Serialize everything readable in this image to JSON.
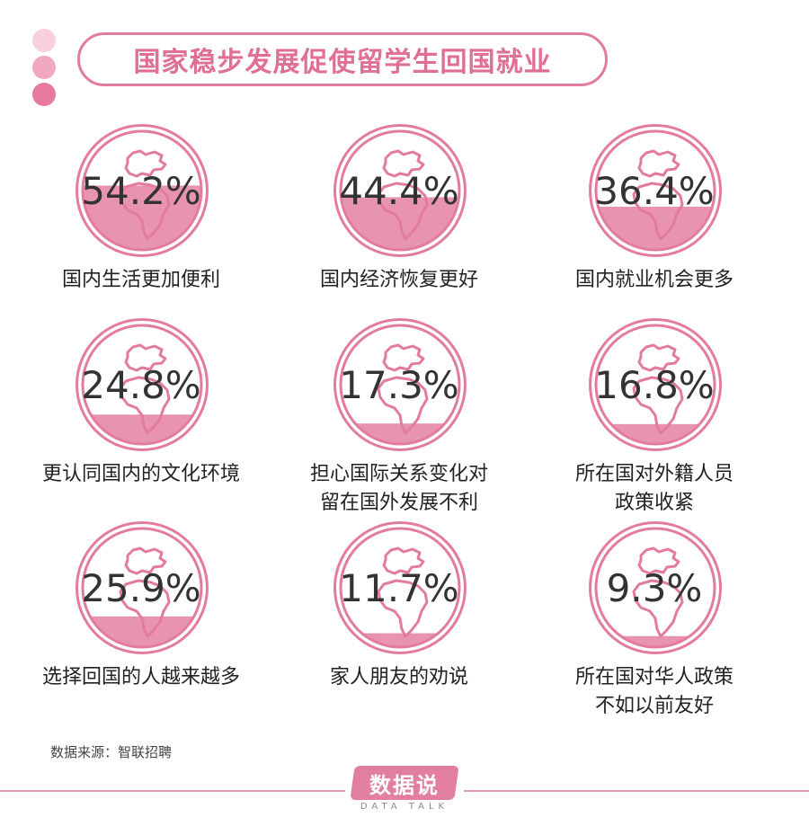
{
  "title": "国家稳步发展促使留学生回国就业",
  "colors": {
    "accent": "#e37c9c",
    "fill": "#e894b0",
    "dots": [
      "#f8d0dc",
      "#f0a9c0",
      "#e77a9c"
    ]
  },
  "chart_data": {
    "type": "bar",
    "title": "国家稳步发展促使留学生回国就业",
    "categories": [
      "国内生活更加便利",
      "国内经济恢复更好",
      "国内就业机会更多",
      "更认同国内的文化环境",
      "担心国际关系变化对留在国外发展不利",
      "所在国对外籍人员政策收紧",
      "选择回国的人越来越多",
      "家人朋友的劝说",
      "所在国对华人政策不如以前友好"
    ],
    "values": [
      54.2,
      44.4,
      36.4,
      24.8,
      17.3,
      16.8,
      25.9,
      11.7,
      9.3
    ],
    "unit": "%"
  },
  "items": [
    {
      "value_text": "54.2%",
      "label_lines": [
        "国内生活更加便利"
      ]
    },
    {
      "value_text": "44.4%",
      "label_lines": [
        "国内经济恢复更好"
      ]
    },
    {
      "value_text": "36.4%",
      "label_lines": [
        "国内就业机会更多"
      ]
    },
    {
      "value_text": "24.8%",
      "label_lines": [
        "更认同国内的文化环境"
      ]
    },
    {
      "value_text": "17.3%",
      "label_lines": [
        "担心国际关系变化对",
        "留在国外发展不利"
      ]
    },
    {
      "value_text": "16.8%",
      "label_lines": [
        "所在国对外籍人员",
        "政策收紧"
      ]
    },
    {
      "value_text": "25.9%",
      "label_lines": [
        "选择回国的人越来越多"
      ]
    },
    {
      "value_text": "11.7%",
      "label_lines": [
        "家人朋友的劝说"
      ]
    },
    {
      "value_text": "9.3%",
      "label_lines": [
        "所在国对华人政策",
        "不如以前友好"
      ]
    }
  ],
  "source": "数据来源：智联招聘",
  "brand": {
    "name": "数据说",
    "sub": "DATA TALK"
  }
}
